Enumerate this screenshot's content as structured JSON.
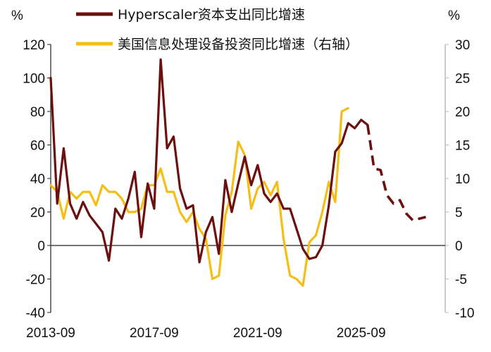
{
  "chart_data": {
    "type": "line",
    "title": "",
    "x": [
      "2013-09",
      "2013-12",
      "2014-03",
      "2014-06",
      "2014-09",
      "2014-12",
      "2015-03",
      "2015-06",
      "2015-09",
      "2015-12",
      "2016-03",
      "2016-06",
      "2016-09",
      "2016-12",
      "2017-03",
      "2017-06",
      "2017-09",
      "2017-12",
      "2018-03",
      "2018-06",
      "2018-09",
      "2018-12",
      "2019-03",
      "2019-06",
      "2019-09",
      "2019-12",
      "2020-03",
      "2020-06",
      "2020-09",
      "2020-12",
      "2021-03",
      "2021-06",
      "2021-09",
      "2021-12",
      "2022-03",
      "2022-06",
      "2022-09",
      "2022-12",
      "2023-03",
      "2023-06",
      "2023-09",
      "2023-12",
      "2024-03",
      "2024-06",
      "2024-09",
      "2024-12",
      "2025-03",
      "2025-06",
      "2025-09",
      "2025-12",
      "2026-03",
      "2026-06",
      "2026-09",
      "2026-12",
      "2027-03",
      "2027-06",
      "2027-09",
      "2027-12",
      "2028-03",
      "2028-06",
      "2028-09",
      "2028-12"
    ],
    "x_tick_labels": [
      "2013-09",
      "2017-09",
      "2021-09",
      "2025-09"
    ],
    "series": [
      {
        "name": "Hyperscaler资本支出同比增速",
        "axis": "left",
        "color": "#6b0f0f",
        "values": [
          100,
          25,
          58,
          25,
          16,
          26,
          18,
          13,
          8,
          -9,
          22,
          16,
          28,
          44,
          5,
          37,
          22,
          111,
          58,
          65,
          34,
          22,
          24,
          -10,
          8,
          17,
          -5,
          39,
          20,
          37,
          53,
          36,
          48,
          31,
          26,
          31,
          22,
          22,
          10,
          -2,
          -8,
          -7,
          0,
          24,
          56,
          61,
          73,
          70,
          75,
          72,
          null,
          null,
          null,
          null,
          null,
          null,
          null,
          null,
          null,
          null,
          null,
          null
        ],
        "projection_values": [
          null,
          null,
          null,
          null,
          null,
          null,
          null,
          null,
          null,
          null,
          null,
          null,
          null,
          null,
          null,
          null,
          null,
          null,
          null,
          null,
          null,
          null,
          null,
          null,
          null,
          null,
          null,
          null,
          null,
          null,
          null,
          null,
          null,
          null,
          null,
          null,
          null,
          null,
          null,
          null,
          null,
          null,
          null,
          null,
          null,
          null,
          null,
          null,
          null,
          72,
          46,
          45,
          30,
          25,
          27,
          19,
          15,
          16,
          17,
          null,
          null,
          null
        ],
        "projection_style": "dashed"
      },
      {
        "name": "美国信息处理设备投资同比增速（右轴）",
        "axis": "right",
        "color": "#f5be17",
        "values": [
          9,
          8,
          4,
          8,
          7,
          8,
          8,
          6,
          9,
          8,
          8,
          7,
          5,
          5,
          5.5,
          9,
          9,
          11.5,
          8,
          8,
          5,
          3.5,
          5,
          2.5,
          1,
          -5,
          -4.5,
          4.5,
          8,
          15.5,
          13.5,
          5.5,
          8.5,
          9.5,
          7.5,
          9.5,
          1,
          -4.5,
          -5,
          -6,
          0.5,
          1.5,
          5,
          9.5,
          6.5,
          20,
          20.5,
          null,
          null,
          null,
          null,
          null,
          null,
          null,
          null,
          null,
          null,
          null,
          null,
          null,
          null,
          null
        ]
      }
    ],
    "left_axis": {
      "unit": "%",
      "ylim": [
        -40,
        120
      ],
      "ticks": [
        "120",
        "100",
        "80",
        "60",
        "40",
        "20",
        "0",
        "-20",
        "-40"
      ]
    },
    "right_axis": {
      "unit": "%",
      "ylim": [
        -10,
        30
      ],
      "ticks": [
        "30",
        "25",
        "20",
        "15",
        "10",
        "5",
        "0",
        "-5",
        "-10"
      ]
    },
    "grid": false,
    "legend_position": "top-center"
  }
}
